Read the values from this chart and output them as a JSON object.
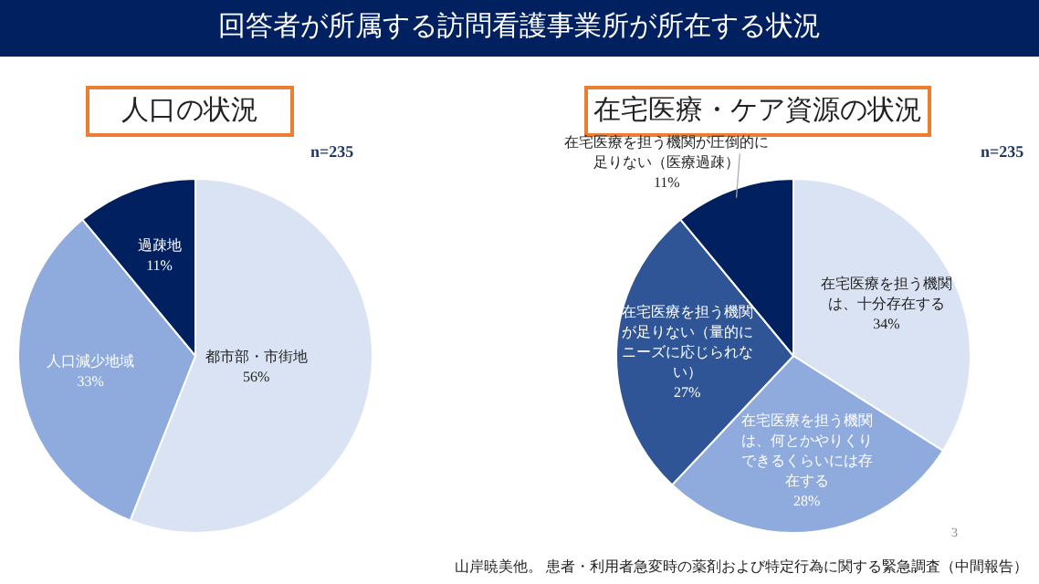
{
  "chart_data": [
    {
      "type": "pie",
      "title": "人口の状況",
      "subtitle": "n=235",
      "annotations": [
        "回答者が所属する訪問看護事業所が所在する状況"
      ],
      "categories": [
        "都市部・市街地",
        "人口減少地域",
        "過疎地"
      ],
      "values": [
        56,
        33,
        11
      ],
      "colors": [
        "#dae3f3",
        "#8faadc",
        "#002060"
      ],
      "value_labels": [
        "56%",
        "33%",
        "11%"
      ]
    },
    {
      "type": "pie",
      "title": "在宅医療・ケア資源の状況",
      "subtitle": "n=235",
      "annotations": [
        "山岸暁美他。 患者・利用者急変時の薬剤および特定行為に関する緊急調査（中間報告）",
        "3"
      ],
      "categories": [
        "在宅医療を担う機関は、十分存在する",
        "在宅医療を担う機関は、何とかやりくりできるくらいには存在する",
        "在宅医療を担う機関が足りない（量的にニーズに応じられない）",
        "在宅医療を担う機関が圧倒的に足りない（医療過疎）"
      ],
      "values": [
        34,
        28,
        27,
        11
      ],
      "colors": [
        "#dae3f3",
        "#8faadc",
        "#2f5597",
        "#002060"
      ],
      "value_labels": [
        "34%",
        "28%",
        "27%",
        "11%"
      ]
    }
  ]
}
